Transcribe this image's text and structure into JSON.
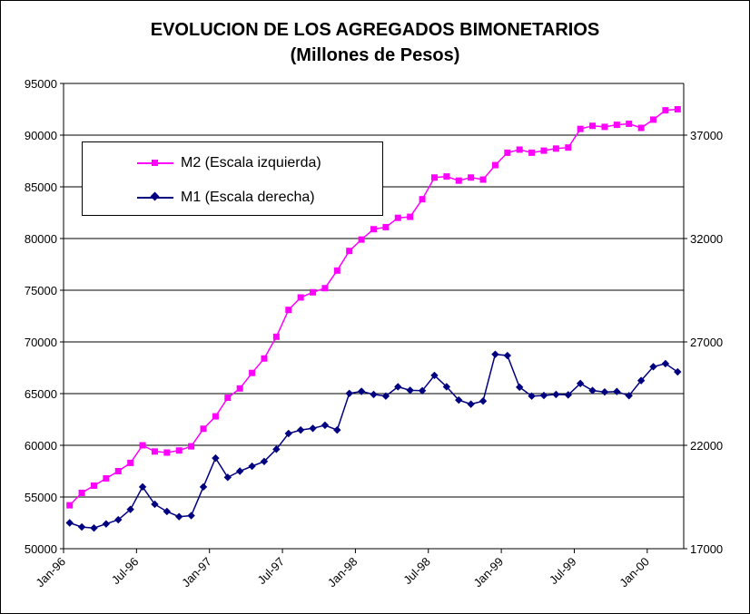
{
  "chart_data": {
    "type": "line",
    "title": "EVOLUCION DE LOS AGREGADOS BIMONETARIOS",
    "subtitle": "(Millones de Pesos)",
    "x_tick_labels": [
      "Jan-96",
      "Jul-96",
      "Jan-97",
      "Jul-97",
      "Jan-98",
      "Jul-98",
      "Jan-99",
      "Jul-99",
      "Jan-00"
    ],
    "x": [
      "1996-01",
      "1996-02",
      "1996-03",
      "1996-04",
      "1996-05",
      "1996-06",
      "1996-07",
      "1996-08",
      "1996-09",
      "1996-10",
      "1996-11",
      "1996-12",
      "1997-01",
      "1997-02",
      "1997-03",
      "1997-04",
      "1997-05",
      "1997-06",
      "1997-07",
      "1997-08",
      "1997-09",
      "1997-10",
      "1997-11",
      "1997-12",
      "1998-01",
      "1998-02",
      "1998-03",
      "1998-04",
      "1998-05",
      "1998-06",
      "1998-07",
      "1998-08",
      "1998-09",
      "1998-10",
      "1998-11",
      "1998-12",
      "1999-01",
      "1999-02",
      "1999-03",
      "1999-04",
      "1999-05",
      "1999-06",
      "1999-07",
      "1999-08",
      "1999-09",
      "1999-10",
      "1999-11",
      "1999-12",
      "2000-01",
      "2000-02",
      "2000-03"
    ],
    "y_left": {
      "min": 50000,
      "max": 95000,
      "ticks": [
        "50000",
        "55000",
        "60000",
        "65000",
        "70000",
        "75000",
        "80000",
        "85000",
        "90000",
        "95000"
      ]
    },
    "y_right": {
      "min": 17000,
      "max": 39500,
      "ticks": [
        "17000",
        "22000",
        "27000",
        "32000",
        "37000"
      ]
    },
    "grid": "horizontal",
    "legend_position": "top-left",
    "series": [
      {
        "name": "M2 (Escala izquierda)",
        "axis": "left",
        "color": "#ff00ff",
        "marker": "square",
        "values": [
          54200,
          55400,
          56100,
          56800,
          57500,
          58300,
          60000,
          59400,
          59300,
          59500,
          59900,
          61600,
          62800,
          64600,
          65500,
          67000,
          68400,
          70500,
          73100,
          74300,
          74800,
          75200,
          76900,
          78800,
          79900,
          80900,
          81100,
          82000,
          82100,
          83800,
          85900,
          86000,
          85600,
          85900,
          85700,
          87100,
          88300,
          88600,
          88300,
          88500,
          88700,
          88800,
          90600,
          90900,
          90800,
          91000,
          91100,
          90700,
          91500,
          92400,
          92500
        ]
      },
      {
        "name": "M1 (Escala derecha)",
        "axis": "right",
        "color": "#000080",
        "marker": "diamond",
        "values": [
          18250,
          18050,
          18000,
          18200,
          18400,
          18900,
          19990,
          19150,
          18800,
          18550,
          18600,
          19990,
          21380,
          20450,
          20750,
          20990,
          21220,
          21810,
          22570,
          22740,
          22820,
          22970,
          22740,
          24510,
          24610,
          24460,
          24380,
          24830,
          24660,
          24640,
          25380,
          24830,
          24190,
          23990,
          24140,
          26400,
          26340,
          24810,
          24380,
          24410,
          24460,
          24440,
          24990,
          24650,
          24580,
          24600,
          24400,
          25130,
          25800,
          25950,
          25550
        ]
      }
    ]
  }
}
